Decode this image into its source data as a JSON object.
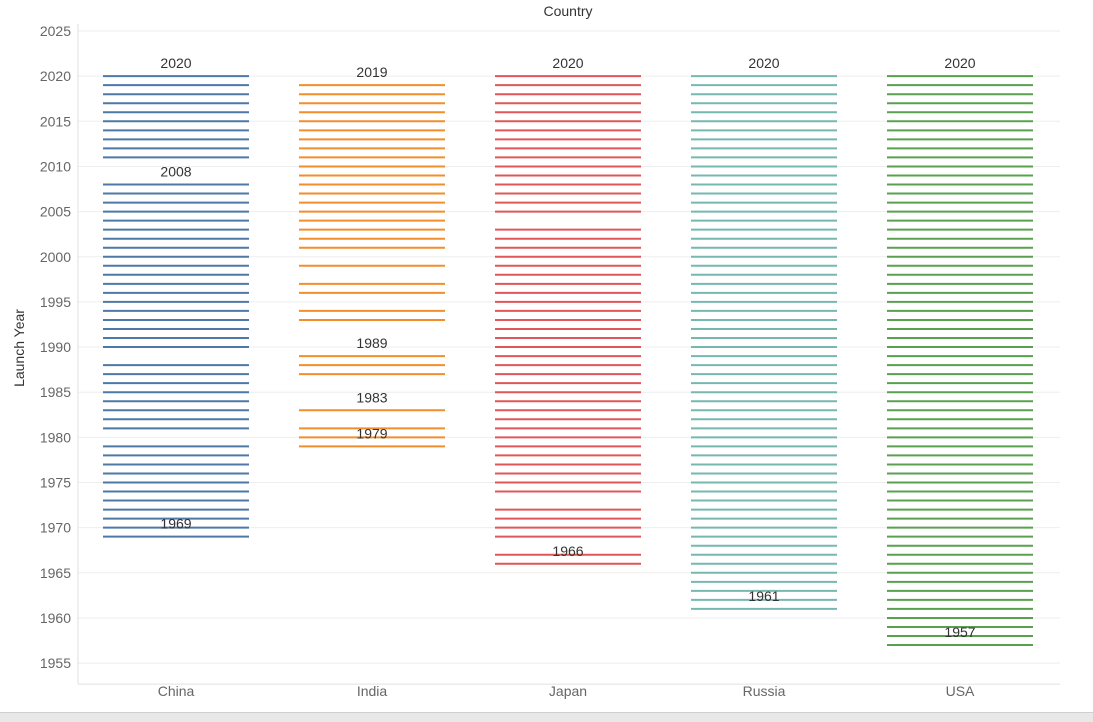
{
  "chart_data": {
    "type": "bar",
    "title": "Country",
    "ylabel": "Launch Year",
    "xlabel": "",
    "categories": [
      "China",
      "India",
      "Japan",
      "Russia",
      "USA"
    ],
    "ylim": [
      1954,
      2025
    ],
    "yticks": [
      1955,
      1960,
      1965,
      1970,
      1975,
      1980,
      1985,
      1990,
      1995,
      2000,
      2005,
      2010,
      2015,
      2020,
      2025
    ],
    "grid": true,
    "series": [
      {
        "category": "China",
        "color": "#4e79a7",
        "years": [
          1969,
          1970,
          1971,
          1972,
          1973,
          1974,
          1975,
          1976,
          1977,
          1978,
          1979,
          1981,
          1982,
          1983,
          1984,
          1985,
          1986,
          1987,
          1988,
          1990,
          1991,
          1992,
          1993,
          1994,
          1995,
          1996,
          1997,
          1998,
          1999,
          2000,
          2001,
          2002,
          2003,
          2004,
          2005,
          2006,
          2007,
          2008,
          2011,
          2012,
          2013,
          2014,
          2015,
          2016,
          2017,
          2018,
          2019,
          2020
        ]
      },
      {
        "category": "India",
        "color": "#f28e2b",
        "years": [
          1979,
          1980,
          1981,
          1983,
          1987,
          1988,
          1989,
          1993,
          1994,
          1996,
          1997,
          1999,
          2001,
          2002,
          2003,
          2004,
          2005,
          2006,
          2007,
          2008,
          2009,
          2010,
          2011,
          2012,
          2013,
          2014,
          2015,
          2016,
          2017,
          2018,
          2019
        ]
      },
      {
        "category": "Japan",
        "color": "#e15759",
        "years": [
          1966,
          1967,
          1969,
          1970,
          1971,
          1972,
          1974,
          1975,
          1976,
          1977,
          1978,
          1979,
          1980,
          1981,
          1982,
          1983,
          1984,
          1985,
          1986,
          1987,
          1988,
          1989,
          1990,
          1991,
          1992,
          1993,
          1994,
          1995,
          1996,
          1997,
          1998,
          1999,
          2000,
          2001,
          2002,
          2003,
          2005,
          2006,
          2007,
          2008,
          2009,
          2010,
          2011,
          2012,
          2013,
          2014,
          2015,
          2016,
          2017,
          2018,
          2019,
          2020
        ]
      },
      {
        "category": "Russia",
        "color": "#76b7b2",
        "years": [
          1961,
          1962,
          1963,
          1964,
          1965,
          1966,
          1967,
          1968,
          1969,
          1970,
          1971,
          1972,
          1973,
          1974,
          1975,
          1976,
          1977,
          1978,
          1979,
          1980,
          1981,
          1982,
          1983,
          1984,
          1985,
          1986,
          1987,
          1988,
          1989,
          1990,
          1991,
          1992,
          1993,
          1994,
          1995,
          1996,
          1997,
          1998,
          1999,
          2000,
          2001,
          2002,
          2003,
          2004,
          2005,
          2006,
          2007,
          2008,
          2009,
          2010,
          2011,
          2012,
          2013,
          2014,
          2015,
          2016,
          2017,
          2018,
          2019,
          2020
        ]
      },
      {
        "category": "USA",
        "color": "#59a14f",
        "years": [
          1957,
          1958,
          1959,
          1960,
          1961,
          1962,
          1963,
          1964,
          1965,
          1966,
          1967,
          1968,
          1969,
          1970,
          1971,
          1972,
          1973,
          1974,
          1975,
          1976,
          1977,
          1978,
          1979,
          1980,
          1981,
          1982,
          1983,
          1984,
          1985,
          1986,
          1987,
          1988,
          1989,
          1990,
          1991,
          1992,
          1993,
          1994,
          1995,
          1996,
          1997,
          1998,
          1999,
          2000,
          2001,
          2002,
          2003,
          2004,
          2005,
          2006,
          2007,
          2008,
          2009,
          2010,
          2011,
          2012,
          2013,
          2014,
          2015,
          2016,
          2017,
          2018,
          2019,
          2020
        ]
      }
    ],
    "annotations": [
      {
        "category": "China",
        "label": "2020",
        "value": 2020
      },
      {
        "category": "China",
        "label": "2008",
        "value": 2008
      },
      {
        "category": "China",
        "label": "1969",
        "value": 1969
      },
      {
        "category": "India",
        "label": "2019",
        "value": 2019
      },
      {
        "category": "India",
        "label": "1989",
        "value": 1989
      },
      {
        "category": "India",
        "label": "1983",
        "value": 1983
      },
      {
        "category": "India",
        "label": "1979",
        "value": 1979
      },
      {
        "category": "Japan",
        "label": "2020",
        "value": 2020
      },
      {
        "category": "Japan",
        "label": "1966",
        "value": 1966
      },
      {
        "category": "Russia",
        "label": "2020",
        "value": 2020
      },
      {
        "category": "Russia",
        "label": "1961",
        "value": 1961
      },
      {
        "category": "USA",
        "label": "2020",
        "value": 2020
      },
      {
        "category": "USA",
        "label": "1957",
        "value": 1957
      }
    ]
  }
}
